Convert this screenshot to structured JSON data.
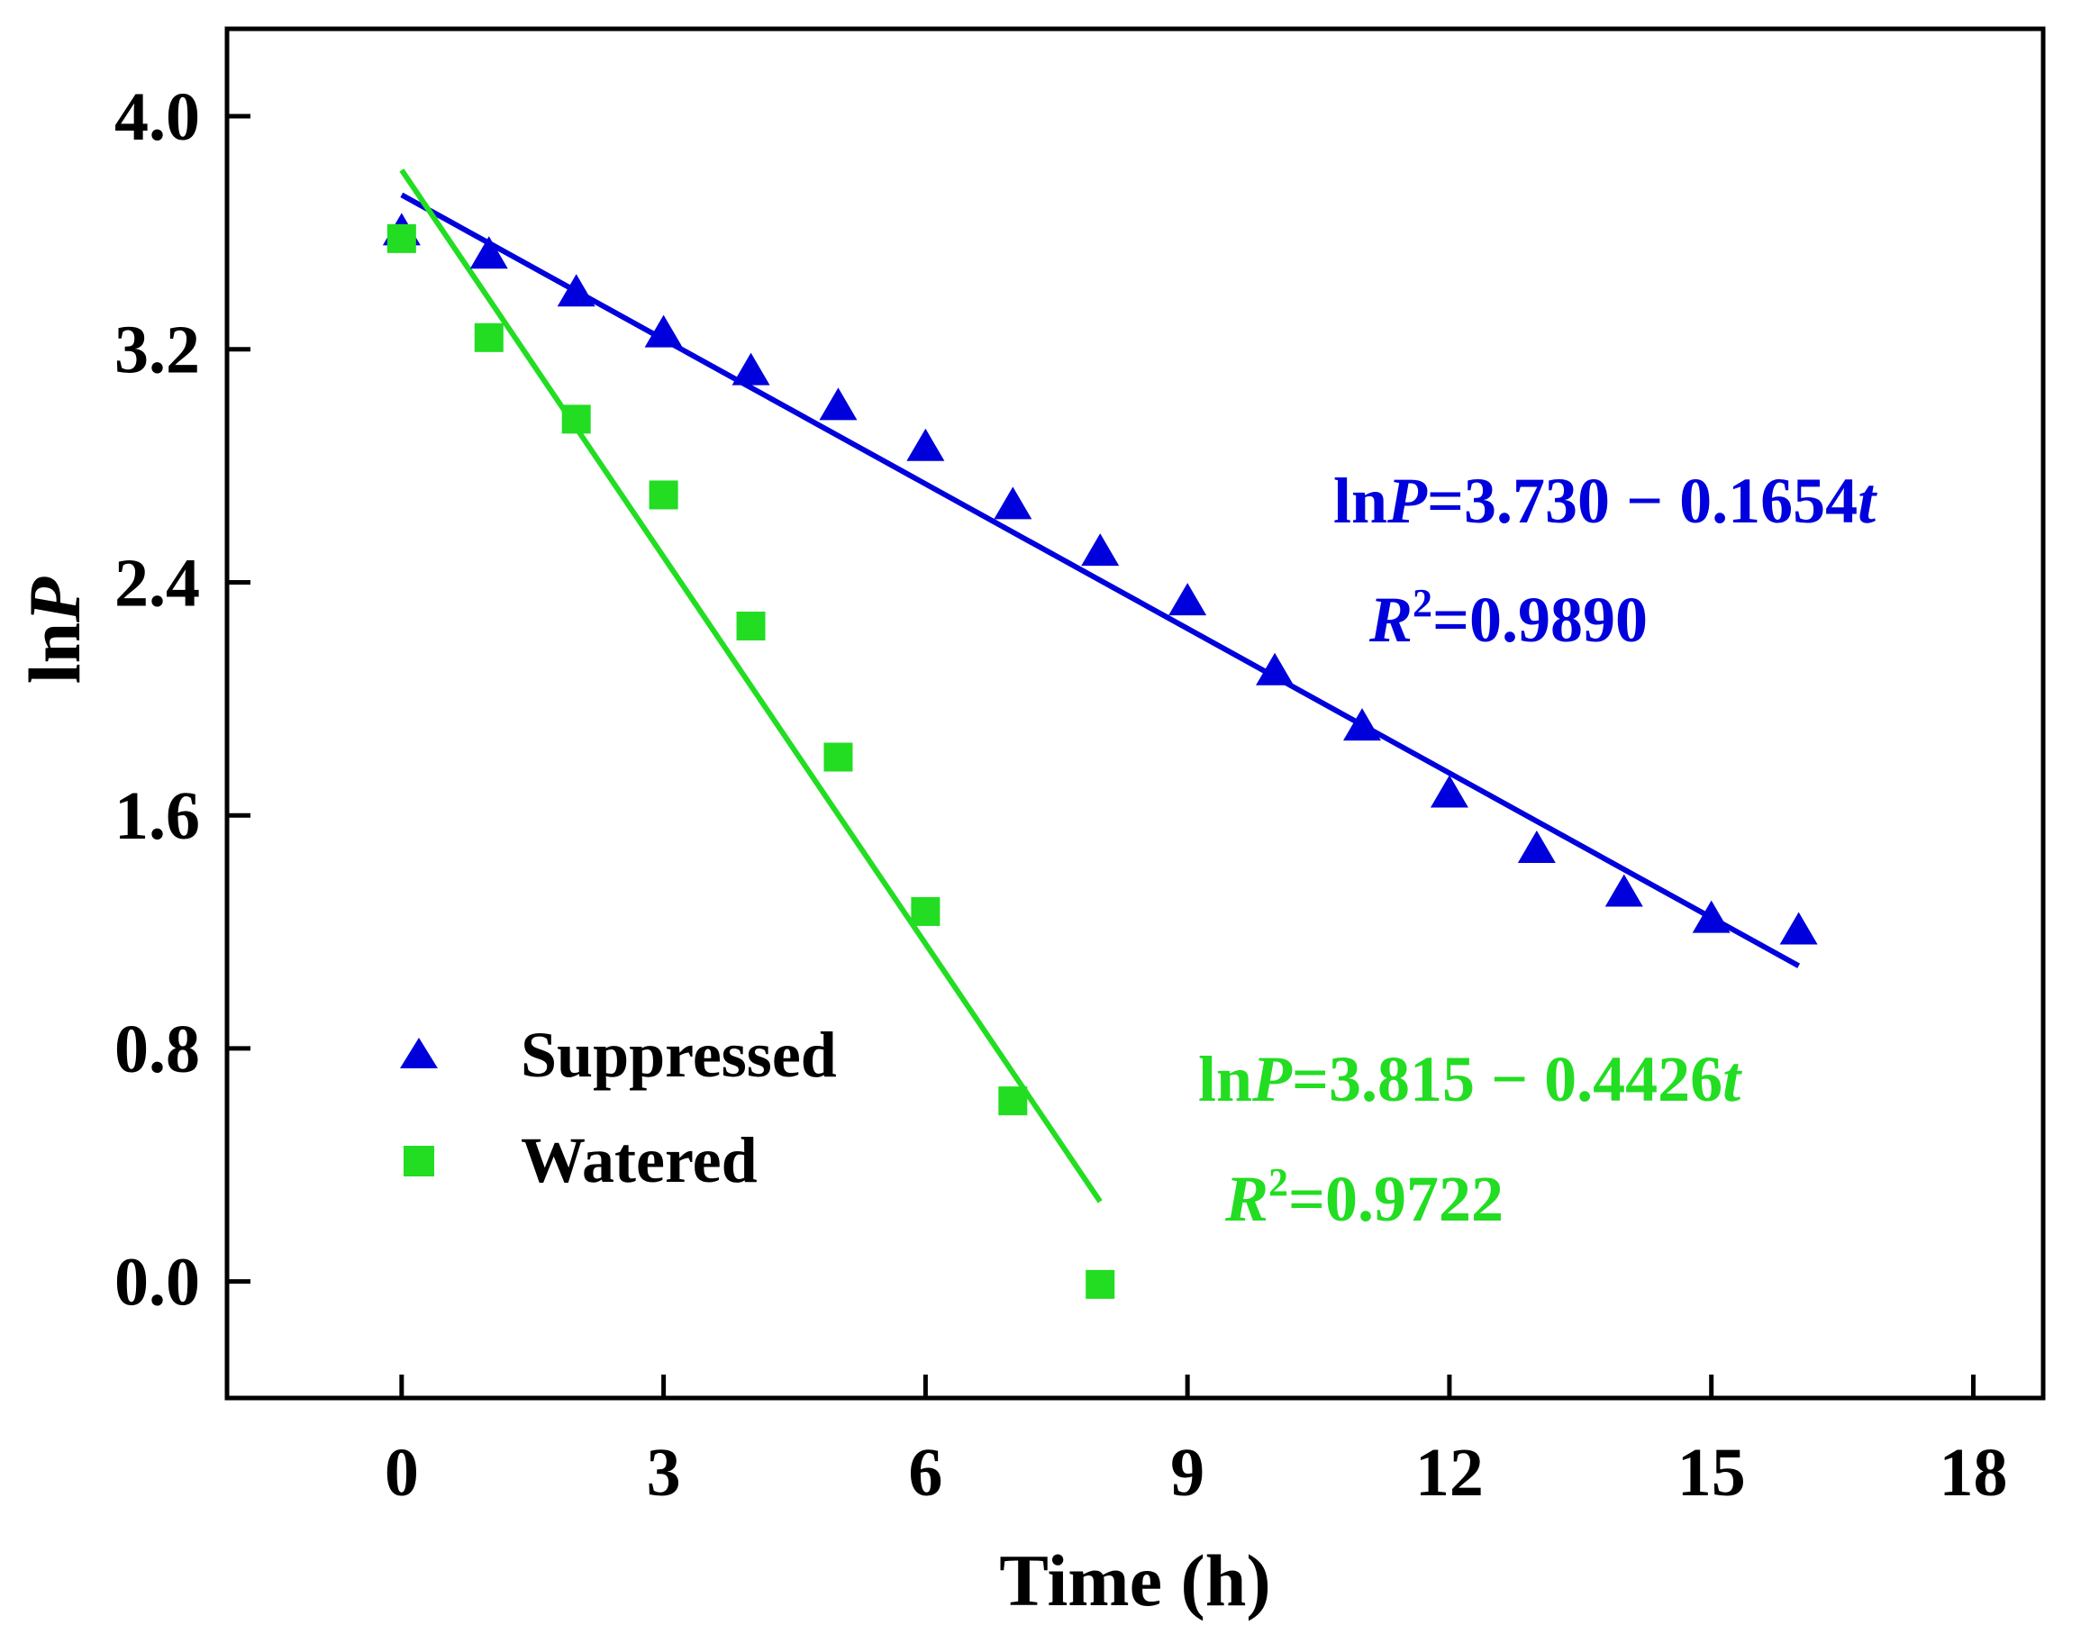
{
  "chart_data": {
    "type": "scatter",
    "xlabel": "Time (h)",
    "ylabel_main": "ln",
    "ylabel_italic": "P",
    "xlim": [
      -2,
      18.8
    ],
    "ylim": [
      -0.4,
      4.3
    ],
    "xticks": [
      0,
      3,
      6,
      9,
      12,
      15,
      18
    ],
    "xtick_labels": [
      "0",
      "3",
      "6",
      "9",
      "12",
      "15",
      "18"
    ],
    "yticks": [
      0.0,
      0.8,
      1.6,
      2.4,
      3.2,
      4.0
    ],
    "ytick_labels": [
      "0.0",
      "0.8",
      "1.6",
      "2.4",
      "3.2",
      "4.0"
    ],
    "legend_position": "bottom-left",
    "series": [
      {
        "name": "Suppressed",
        "marker": "triangle",
        "color": "#0000dd",
        "x": [
          0,
          1,
          2,
          3,
          4,
          5,
          6,
          7,
          8,
          9,
          10,
          11,
          12,
          13,
          14,
          15,
          16
        ],
        "y": [
          3.6,
          3.52,
          3.39,
          3.25,
          3.12,
          3.0,
          2.86,
          2.66,
          2.5,
          2.33,
          2.09,
          1.9,
          1.67,
          1.48,
          1.33,
          1.24,
          1.2
        ],
        "fit": {
          "intercept": 3.73,
          "slope": -0.1654,
          "x_range": [
            0,
            16
          ]
        },
        "equation": {
          "ln": "ln",
          "P": "P",
          "rest": "=3.730 − 0.1654",
          "t": "t"
        },
        "r2": {
          "R": "R",
          "sup": "2",
          "value": "=0.9890"
        }
      },
      {
        "name": "Watered",
        "marker": "square",
        "color": "#22dd22",
        "x": [
          0,
          1,
          2,
          3,
          4,
          5,
          6,
          7,
          8
        ],
        "y": [
          3.58,
          3.24,
          2.96,
          2.7,
          2.25,
          1.8,
          1.27,
          0.62,
          -0.01
        ],
        "fit": {
          "intercept": 3.815,
          "slope": -0.4426,
          "x_range": [
            0,
            8
          ]
        },
        "equation": {
          "ln": "ln",
          "P": "P",
          "rest": "=3.815 − 0.4426",
          "t": "t"
        },
        "r2": {
          "R": "R",
          "sup": "2",
          "value": "=0.9722"
        }
      }
    ]
  }
}
